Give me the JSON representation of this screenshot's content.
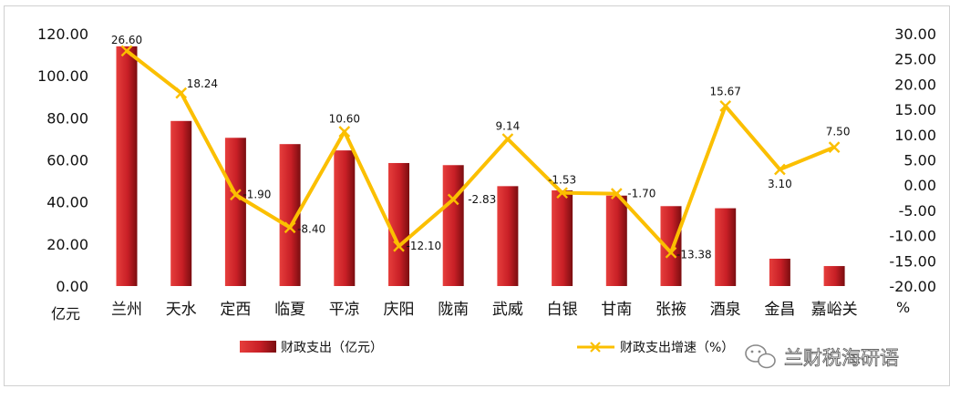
{
  "chart_data": {
    "type": "bar",
    "categories": [
      "兰州",
      "天水",
      "定西",
      "临夏",
      "平凉",
      "庆阳",
      "陇南",
      "武威",
      "白银",
      "甘南",
      "张掖",
      "酒泉",
      "金昌",
      "嘉峪关"
    ],
    "series": [
      {
        "name": "财政支出（亿元）",
        "type": "bar",
        "axis": "left",
        "color": "#c8262c",
        "values": [
          114.0,
          78.5,
          70.5,
          67.5,
          64.5,
          58.5,
          57.5,
          47.5,
          45.5,
          43.0,
          38.0,
          37.0,
          13.0,
          9.5
        ]
      },
      {
        "name": "财政支出增速（%）",
        "type": "line",
        "axis": "right",
        "color": "#fbbf00",
        "values": [
          26.6,
          18.24,
          -1.9,
          -8.4,
          10.6,
          -12.1,
          -2.83,
          9.14,
          -1.53,
          -1.7,
          -13.38,
          15.67,
          3.1,
          7.5
        ],
        "labels": [
          "26.60",
          "18.24",
          "-1.90",
          "-8.40",
          "10.60",
          "-12.10",
          "-2.83",
          "9.14",
          "-1.53",
          "-1.70",
          "-13.38",
          "15.67",
          "3.10",
          "7.50"
        ]
      }
    ],
    "left_axis": {
      "min": 0,
      "max": 120,
      "ticks": [
        "0.00",
        "20.00",
        "40.00",
        "60.00",
        "80.00",
        "100.00",
        "120.00"
      ],
      "unit": "亿元"
    },
    "right_axis": {
      "min": -20,
      "max": 30,
      "ticks": [
        "-20.00",
        "-15.00",
        "-10.00",
        "-5.00",
        "0.00",
        "5.00",
        "10.00",
        "15.00",
        "20.00",
        "25.00",
        "30.00"
      ],
      "unit": "%"
    },
    "grid": false,
    "legend": "bottom"
  },
  "watermark": {
    "text": "兰财税海研语",
    "icon": "wechat-icon"
  }
}
